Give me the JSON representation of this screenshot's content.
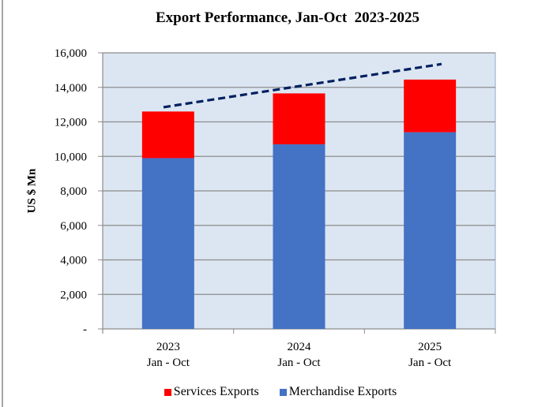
{
  "chart_data": {
    "type": "bar",
    "stacked": true,
    "title": "Export Performance, Jan-Oct  2023-2025",
    "xlabel": "",
    "ylabel": "US $ Mn",
    "ylim": [
      0,
      16000
    ],
    "yticks": [
      0,
      2000,
      4000,
      6000,
      8000,
      10000,
      12000,
      14000,
      16000
    ],
    "ytick_labels": [
      "-",
      "2,000",
      "4,000",
      "6,000",
      "8,000",
      "10,000",
      "12,000",
      "14,000",
      "16,000"
    ],
    "categories": [
      {
        "year": "2023",
        "period": "Jan - Oct"
      },
      {
        "year": "2024",
        "period": "Jan - Oct"
      },
      {
        "year": "2025",
        "period": "Jan - Oct"
      }
    ],
    "series": [
      {
        "name": "Merchandise Exports",
        "color": "#4472c4",
        "values": [
          9900,
          10700,
          11400
        ]
      },
      {
        "name": "Services Exports",
        "color": "#ff0000",
        "values": [
          2700,
          2950,
          3050
        ]
      }
    ],
    "totals": [
      12600,
      13650,
      14450
    ],
    "trendline": {
      "style": "dashed",
      "color": "#002060",
      "start": 12850,
      "end": 15350
    },
    "grid": true,
    "legend_position": "bottom",
    "legend": [
      "Services Exports",
      "Merchandise Exports"
    ],
    "plot_background": "#dce6f2"
  }
}
